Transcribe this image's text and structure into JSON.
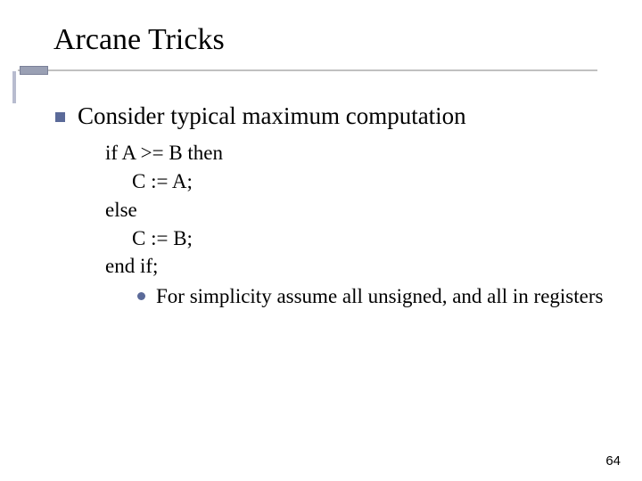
{
  "title": "Arcane Tricks",
  "bullet1": "Consider typical maximum computation",
  "code": {
    "l1": "if A >= B then",
    "l2": "C := A;",
    "l3": "else",
    "l4": "C := B;",
    "l5": "end if;"
  },
  "bullet2": "For simplicity assume all unsigned, and all in registers",
  "page_number": "64",
  "colors": {
    "square_bullet": "#5b6a99",
    "dot_bullet": "#5b6a99",
    "underline": "#c0c0c0",
    "accent_box": "#9aa0b4",
    "background": "#ffffff",
    "text": "#000000"
  },
  "fonts": {
    "title_size_pt": 34,
    "body_size_pt": 27,
    "code_size_pt": 23,
    "page_no_size_pt": 15,
    "family": "Times New Roman"
  }
}
